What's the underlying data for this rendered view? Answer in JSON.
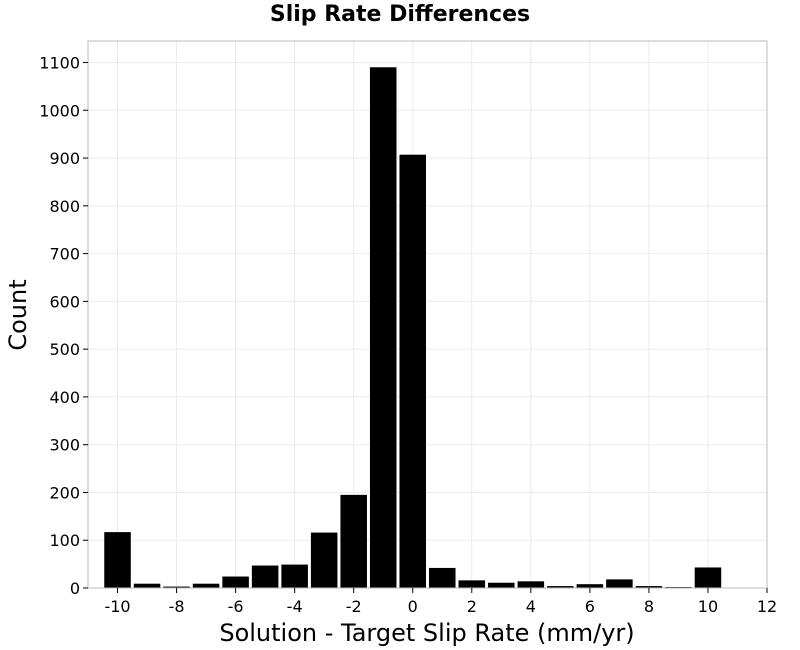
{
  "chart_data": {
    "type": "bar",
    "title": "Slip Rate Differences",
    "xlabel": "Solution - Target Slip Rate (mm/yr)",
    "ylabel": "Count",
    "xlim": [
      -11,
      12
    ],
    "ylim": [
      0,
      1145
    ],
    "xticks": [
      -10,
      -8,
      -6,
      -4,
      -2,
      0,
      2,
      4,
      6,
      8,
      10,
      12
    ],
    "yticks": [
      0,
      100,
      200,
      300,
      400,
      500,
      600,
      700,
      800,
      900,
      1000,
      1100
    ],
    "grid": true,
    "bin_width": 1,
    "bars": [
      {
        "x": -10,
        "value": 117
      },
      {
        "x": -9,
        "value": 9
      },
      {
        "x": -8,
        "value": 3
      },
      {
        "x": -7,
        "value": 9
      },
      {
        "x": -6,
        "value": 24
      },
      {
        "x": -5,
        "value": 47
      },
      {
        "x": -4,
        "value": 49
      },
      {
        "x": -3,
        "value": 116
      },
      {
        "x": -2,
        "value": 195
      },
      {
        "x": -1,
        "value": 1090
      },
      {
        "x": 0,
        "value": 907
      },
      {
        "x": 1,
        "value": 42
      },
      {
        "x": 2,
        "value": 16
      },
      {
        "x": 3,
        "value": 11
      },
      {
        "x": 4,
        "value": 14
      },
      {
        "x": 5,
        "value": 4
      },
      {
        "x": 6,
        "value": 8
      },
      {
        "x": 7,
        "value": 18
      },
      {
        "x": 8,
        "value": 4
      },
      {
        "x": 9,
        "value": 2
      },
      {
        "x": 10,
        "value": 43
      }
    ],
    "colors": {
      "bar": "#000000",
      "grid": "#ebebeb",
      "frame": "#bbbbbb"
    }
  }
}
